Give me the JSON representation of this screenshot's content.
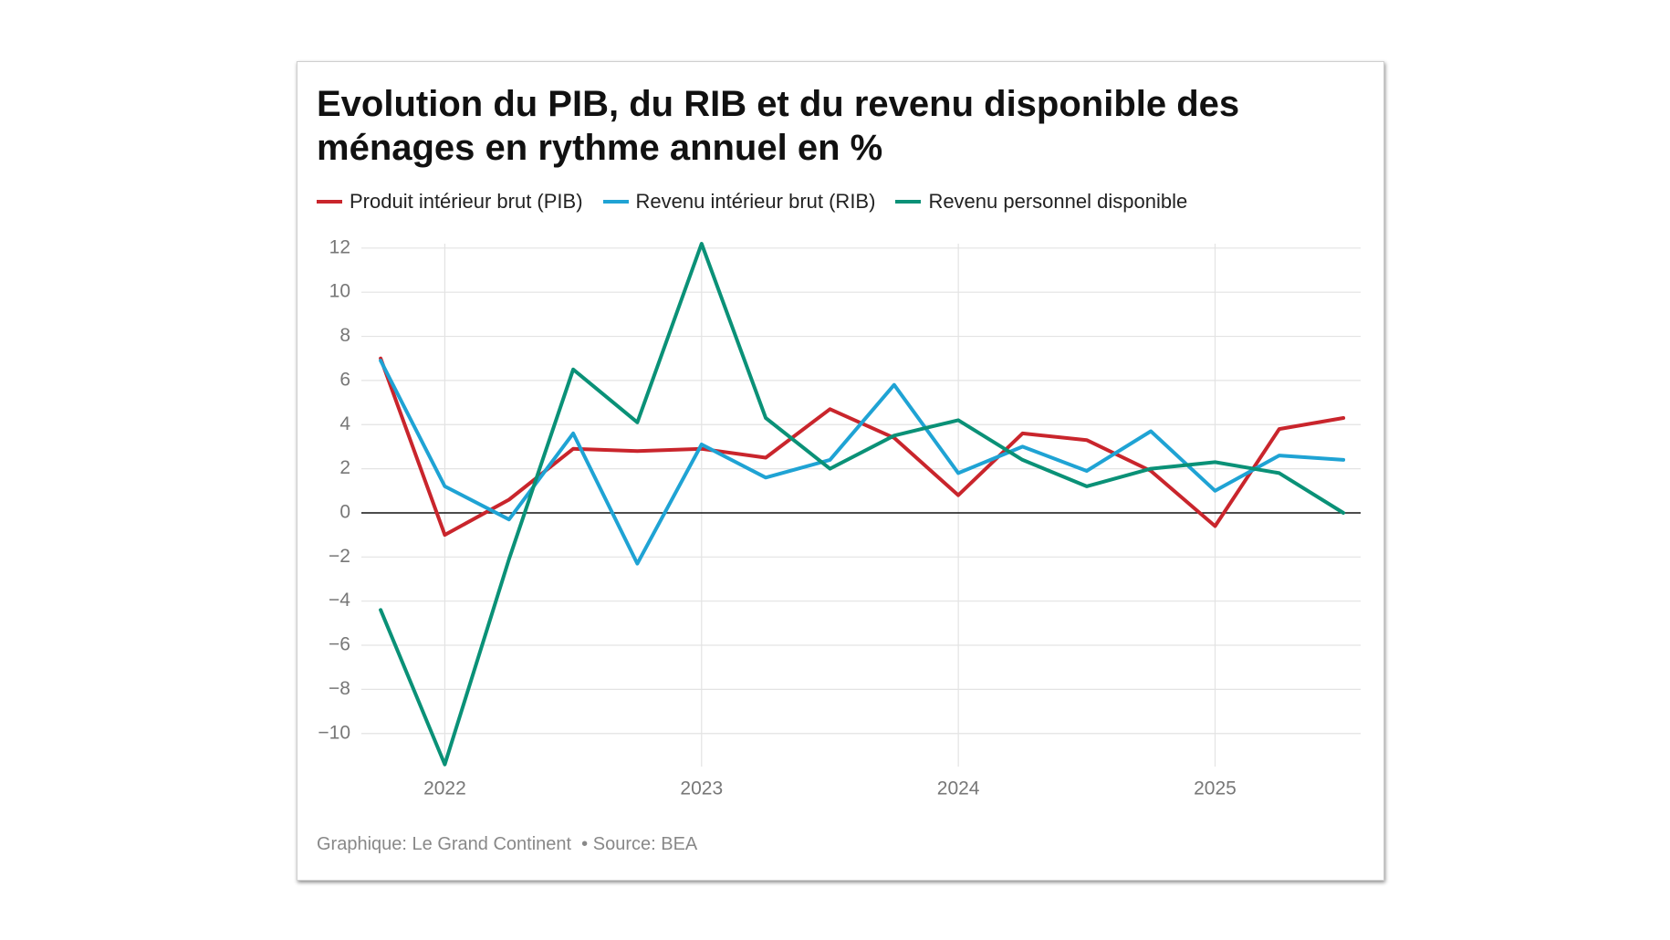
{
  "chart_data": {
    "type": "line",
    "title": "Evolution du PIB, du RIB et du revenu disponible des ménages en rythme annuel en %",
    "footer": "Graphique: Le Grand Continent  • Source: BEA",
    "x": [
      2021.75,
      2022,
      2022.25,
      2022.5,
      2022.75,
      2023,
      2023.25,
      2023.5,
      2023.75,
      2024,
      2024.25,
      2024.5,
      2024.75,
      2025,
      2025.25,
      2025.5
    ],
    "xlim": [
      2021.675,
      2025.567
    ],
    "xticks": [
      2022,
      2023,
      2024,
      2025
    ],
    "ylim": [
      -11.5,
      12.2
    ],
    "yticks": [
      {
        "value": -10,
        "label": "−10"
      },
      {
        "value": -8,
        "label": "−8"
      },
      {
        "value": -6,
        "label": "−6"
      },
      {
        "value": -4,
        "label": "−4"
      },
      {
        "value": -2,
        "label": "−2"
      },
      0,
      2,
      4,
      6,
      8,
      10,
      12
    ],
    "grid": true,
    "series": [
      {
        "name": "Produit intérieur brut (PIB)",
        "color": "#c9252c",
        "values": [
          7.0,
          -1.0,
          0.6,
          2.9,
          2.8,
          2.9,
          2.5,
          4.7,
          3.4,
          0.8,
          3.6,
          3.3,
          1.9,
          -0.6,
          3.8,
          4.3
        ]
      },
      {
        "name": "Revenu intérieur brut (RIB)",
        "color": "#1fa3d4",
        "values": [
          6.9,
          1.2,
          -0.3,
          3.6,
          -2.3,
          3.1,
          1.6,
          2.4,
          5.8,
          1.8,
          3.0,
          1.9,
          3.7,
          1.0,
          2.6,
          2.4
        ]
      },
      {
        "name": "Revenu personnel disponible",
        "color": "#0a9177",
        "values": [
          -4.4,
          -11.4,
          -2.1,
          6.5,
          4.1,
          12.2,
          4.3,
          2.0,
          3.5,
          4.2,
          2.4,
          1.2,
          2.0,
          2.3,
          1.8,
          0.0
        ]
      }
    ]
  }
}
